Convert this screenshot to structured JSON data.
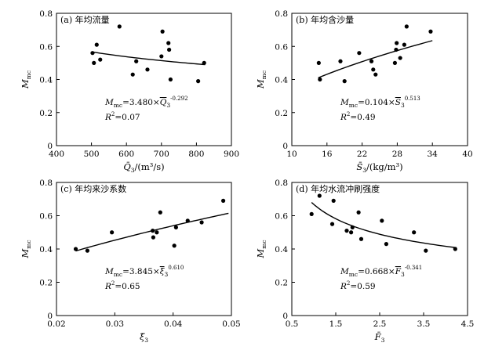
{
  "chart_data": [
    {
      "type": "scatter",
      "panel_label": "(a)",
      "title": "年均流量",
      "ylabel": "Mmc",
      "xlabel": "Q̄3/(m³/s)",
      "xlim": [
        400,
        900
      ],
      "ylim": [
        0,
        0.8
      ],
      "xticks": [
        "400",
        "500",
        "600",
        "700",
        "800",
        "900"
      ],
      "yticks": [
        "0",
        "0.2",
        "0.4",
        "0.6",
        "0.8"
      ],
      "points": [
        [
          503,
          0.56
        ],
        [
          507,
          0.5
        ],
        [
          515,
          0.61
        ],
        [
          525,
          0.52
        ],
        [
          580,
          0.72
        ],
        [
          618,
          0.43
        ],
        [
          628,
          0.51
        ],
        [
          660,
          0.46
        ],
        [
          700,
          0.54
        ],
        [
          703,
          0.69
        ],
        [
          720,
          0.62
        ],
        [
          722,
          0.58
        ],
        [
          726,
          0.4
        ],
        [
          805,
          0.39
        ],
        [
          822,
          0.5
        ]
      ],
      "fit": {
        "model": "power",
        "a": 3.48,
        "b": -0.292,
        "x_range": [
          500,
          825
        ]
      },
      "equation": {
        "lhs": "M",
        "lhs_sub": "mc",
        "mid": "=3.480×",
        "var": "Q",
        "var_sub": "3",
        "exp": "-0.292"
      },
      "r2": "=0.07"
    },
    {
      "type": "scatter",
      "panel_label": "(b)",
      "title": "年均含沙量",
      "ylabel": "Mmc",
      "xlabel": "S̄3/(kg/m³)",
      "xlim": [
        10,
        40
      ],
      "ylim": [
        0,
        0.8
      ],
      "xticks": [
        "10",
        "16",
        "22",
        "28",
        "34",
        "40"
      ],
      "yticks": [
        "0",
        "0.2",
        "0.4",
        "0.6",
        "0.8"
      ],
      "points": [
        [
          14.6,
          0.5
        ],
        [
          14.8,
          0.4
        ],
        [
          18.3,
          0.51
        ],
        [
          19.0,
          0.39
        ],
        [
          21.5,
          0.56
        ],
        [
          23.6,
          0.51
        ],
        [
          23.9,
          0.46
        ],
        [
          24.3,
          0.43
        ],
        [
          27.6,
          0.5
        ],
        [
          27.8,
          0.58
        ],
        [
          27.9,
          0.62
        ],
        [
          28.5,
          0.53
        ],
        [
          29.2,
          0.61
        ],
        [
          29.6,
          0.72
        ],
        [
          33.7,
          0.69
        ]
      ],
      "fit": {
        "model": "power",
        "a": 0.104,
        "b": 0.513,
        "x_range": [
          14.5,
          34
        ]
      },
      "equation": {
        "lhs": "M",
        "lhs_sub": "mc",
        "mid": "=0.104×",
        "var": "S",
        "var_sub": "3",
        "exp": "0.513"
      },
      "r2": "=0.49"
    },
    {
      "type": "scatter",
      "panel_label": "(c)",
      "title": "年均来沙系数",
      "ylabel": "Mmc",
      "xlabel": "ξ̄3",
      "xlim": [
        0.02,
        0.05
      ],
      "ylim": [
        0,
        0.8
      ],
      "xticks": [
        "0.02",
        "0.03",
        "0.04",
        "0.05"
      ],
      "yticks": [
        "0",
        "0.2",
        "0.4",
        "0.6",
        "0.8"
      ],
      "points": [
        [
          0.0233,
          0.4
        ],
        [
          0.0253,
          0.39
        ],
        [
          0.0295,
          0.5
        ],
        [
          0.0365,
          0.51
        ],
        [
          0.0366,
          0.47
        ],
        [
          0.0372,
          0.5
        ],
        [
          0.0378,
          0.62
        ],
        [
          0.0402,
          0.42
        ],
        [
          0.0405,
          0.53
        ],
        [
          0.0425,
          0.57
        ],
        [
          0.0449,
          0.56
        ],
        [
          0.0486,
          0.69
        ]
      ],
      "fit": {
        "model": "power",
        "a": 3.845,
        "b": 0.61,
        "x_range": [
          0.0233,
          0.0495
        ]
      },
      "equation": {
        "lhs": "M",
        "lhs_sub": "mc",
        "mid": "=3.845×",
        "var": "ξ",
        "var_sub": "3",
        "exp": "0.610"
      },
      "r2": "=0.65"
    },
    {
      "type": "scatter",
      "panel_label": "(d)",
      "title": "年均水流冲刷强度",
      "ylabel": "Mmc",
      "xlabel": "F̄3",
      "xlim": [
        0.5,
        4.5
      ],
      "ylim": [
        0,
        0.8
      ],
      "xticks": [
        "0.5",
        "1.5",
        "2.5",
        "3.5",
        "4.5"
      ],
      "yticks": [
        "0",
        "0.2",
        "0.4",
        "0.6",
        "0.8"
      ],
      "points": [
        [
          0.95,
          0.61
        ],
        [
          1.13,
          0.72
        ],
        [
          1.42,
          0.55
        ],
        [
          1.45,
          0.69
        ],
        [
          1.75,
          0.51
        ],
        [
          1.85,
          0.5
        ],
        [
          1.88,
          0.53
        ],
        [
          2.02,
          0.62
        ],
        [
          2.08,
          0.46
        ],
        [
          2.55,
          0.57
        ],
        [
          2.65,
          0.43
        ],
        [
          3.28,
          0.5
        ],
        [
          3.55,
          0.39
        ],
        [
          4.22,
          0.4
        ]
      ],
      "fit": {
        "model": "power",
        "a": 0.668,
        "b": -0.341,
        "x_range": [
          0.95,
          4.25
        ]
      },
      "equation": {
        "lhs": "M",
        "lhs_sub": "mc",
        "mid": "=0.668×",
        "var": "F",
        "var_sub": "3",
        "exp": "-0.341"
      },
      "r2": "=0.59"
    }
  ]
}
